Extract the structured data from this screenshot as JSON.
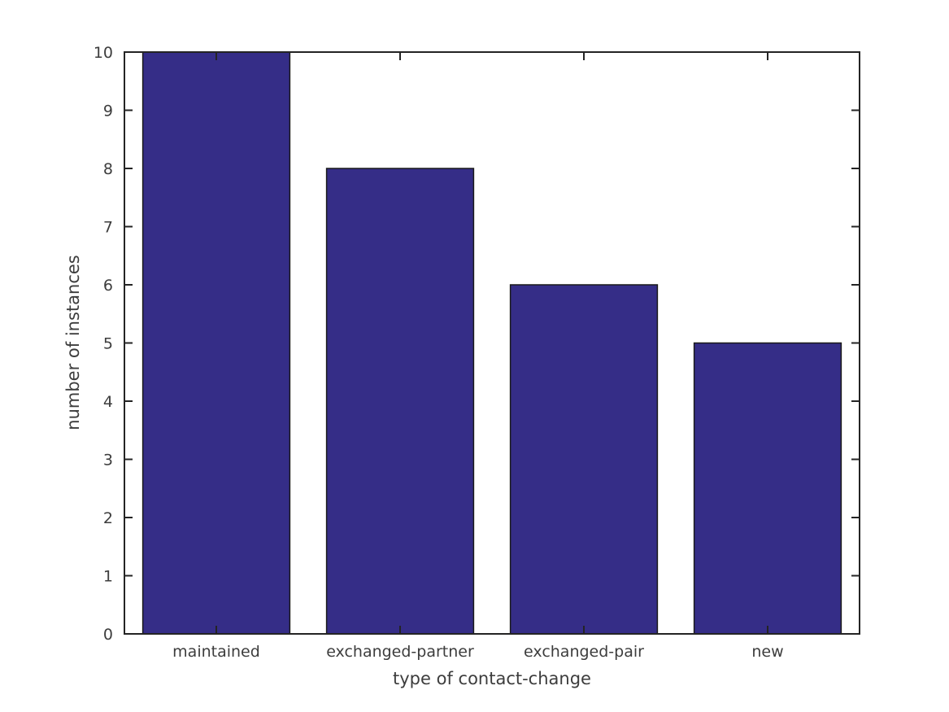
{
  "figure": {
    "background_color": "#ffffff"
  },
  "chart_data": {
    "type": "bar",
    "categories": [
      "maintained",
      "exchanged-partner",
      "exchanged-pair",
      "new"
    ],
    "values": [
      10,
      8,
      6,
      5
    ],
    "xlabel": "type of contact-change",
    "ylabel": "number of instances",
    "ylim": [
      0,
      10
    ],
    "yticks": [
      0,
      1,
      2,
      3,
      4,
      5,
      6,
      7,
      8,
      9,
      10
    ],
    "grid": false,
    "legend": null,
    "box_frame": true,
    "ticks_all_sides": true,
    "bar_width_fraction": 0.8,
    "bar_color": "#352d87",
    "bar_edge_color": "#1a1a1a",
    "axis_color": "#242424",
    "tick_label_color": "#3d3d3d"
  }
}
